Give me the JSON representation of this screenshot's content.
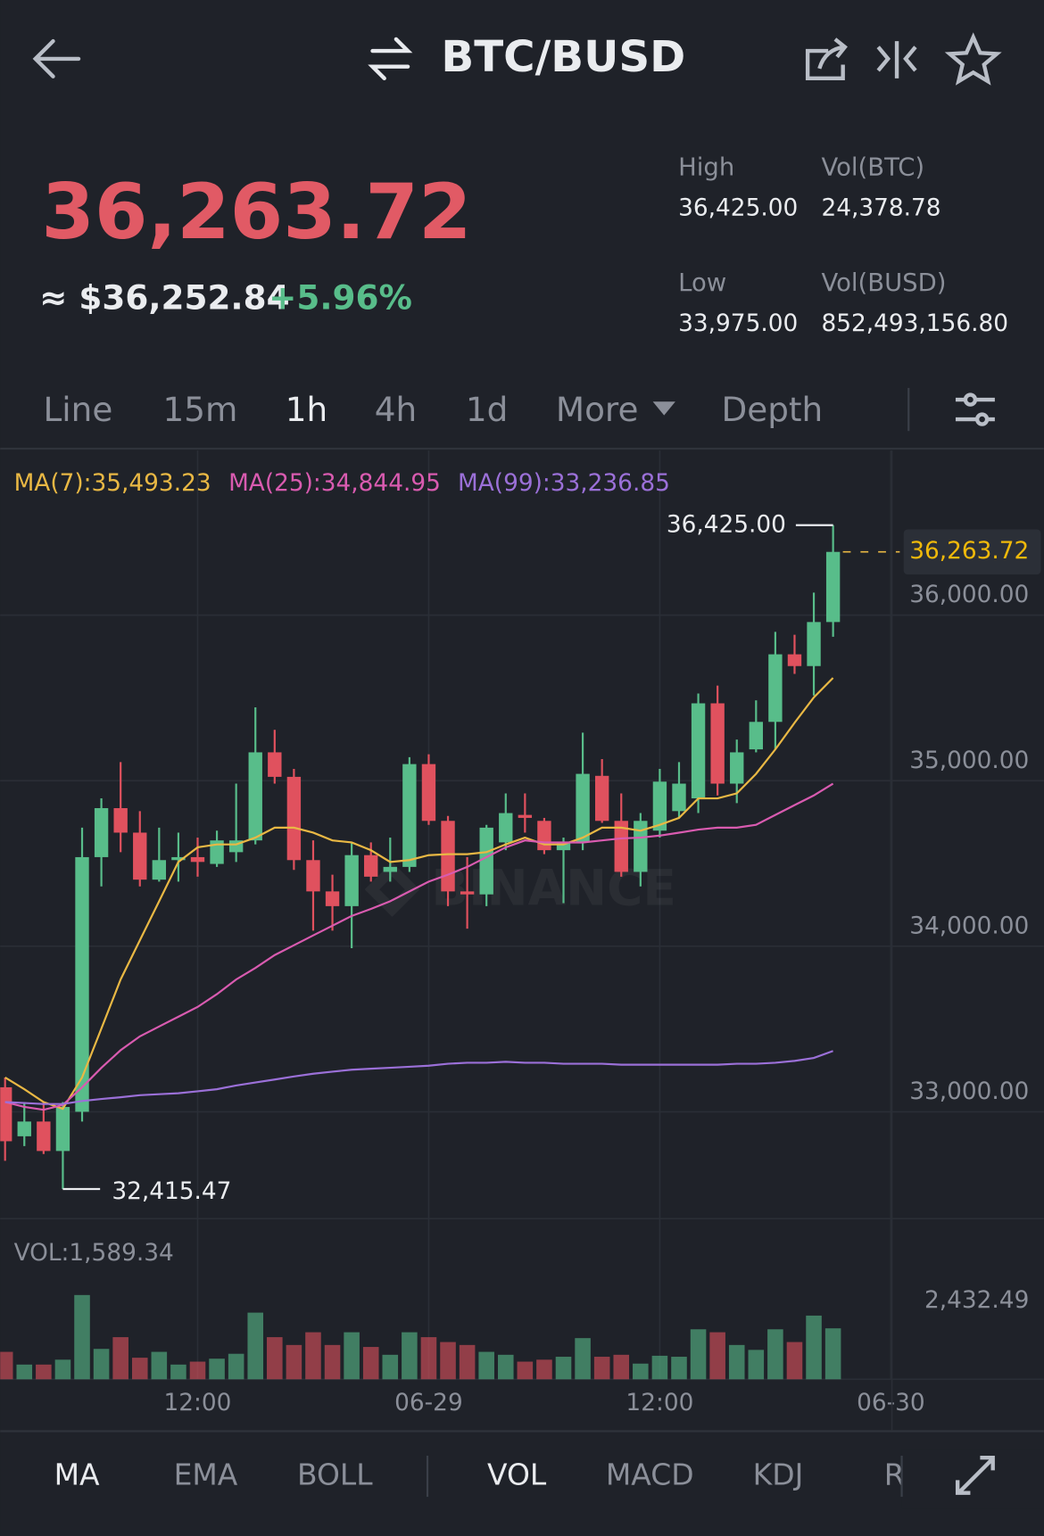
{
  "header": {
    "pair": "BTC/BUSD",
    "last_price": "36,263.72",
    "fiat_price": "≈ $36,252.84",
    "change": "+5.96%"
  },
  "stats": [
    {
      "label": "High",
      "value": "36,425.00"
    },
    {
      "label": "Vol(BTC)",
      "value": "24,378.78"
    },
    {
      "label": "Low",
      "value": "33,975.00"
    },
    {
      "label": "Vol(BUSD)",
      "value": "852,493,156.80"
    }
  ],
  "interval_tabs": [
    "Line",
    "15m",
    "1h",
    "4h",
    "1d",
    "More",
    "Depth"
  ],
  "indicator_tabs": [
    "MA",
    "EMA",
    "BOLL",
    "VOL",
    "MACD",
    "KDJ",
    "R"
  ],
  "chart_data": {
    "type": "candlestick",
    "watermark": "BINANCE",
    "ylim": [
      32150,
      36550
    ],
    "yticks": [
      {
        "value": 33000,
        "label": "33,000.00"
      },
      {
        "value": 34000,
        "label": "34,000.00"
      },
      {
        "value": 35000,
        "label": "35,000.00"
      },
      {
        "value": 36000,
        "label": "36,000.00"
      }
    ],
    "xticks": [
      {
        "value": 10,
        "label": "12:00"
      },
      {
        "value": 22,
        "label": "06-29"
      },
      {
        "value": 34,
        "label": "12:00"
      },
      {
        "value": 46,
        "label": "06-30"
      }
    ],
    "high_label": "36,425.00",
    "low_label": "32,415.47",
    "last_label": "36,263.72",
    "up_color": "#58bd8a",
    "down_color": "#e0515e",
    "open": [
      33030,
      32734,
      32823,
      32645,
      32882,
      34420,
      34716,
      34568,
      34284,
      34402,
      34420,
      34379,
      34450,
      34521,
      35053,
      34905,
      34402,
      34213,
      34124,
      34432,
      34331,
      34361,
      34982,
      34639,
      34213,
      34195,
      34509,
      34675,
      34639,
      34462,
      34509,
      34911,
      34639,
      34331,
      34580,
      34698,
      34775,
      35349,
      34864,
      35071,
      35237,
      35645,
      35574,
      35840
    ],
    "high": [
      33089,
      32941,
      32941,
      32941,
      34598,
      34775,
      34994,
      34698,
      34598,
      34568,
      34538,
      34580,
      34864,
      35325,
      35189,
      34953,
      34521,
      34314,
      34509,
      34509,
      34538,
      35024,
      35041,
      34669,
      34420,
      34615,
      34805,
      34805,
      34657,
      34538,
      35172,
      35012,
      34805,
      34686,
      34953,
      34994,
      35408,
      35456,
      35130,
      35367,
      35781,
      35763,
      36018,
      36425
    ],
    "low": [
      32586,
      32675,
      32627,
      32415.47,
      32823,
      34243,
      34450,
      34243,
      34272,
      34272,
      34302,
      34361,
      34391,
      34497,
      34864,
      34343,
      33976,
      33976,
      33870,
      34272,
      34272,
      34331,
      34615,
      34124,
      33988,
      34124,
      34462,
      34568,
      34438,
      34142,
      34462,
      34627,
      34302,
      34243,
      34538,
      34657,
      34686,
      34793,
      34746,
      35053,
      35071,
      35527,
      35396,
      35751
    ],
    "close": [
      32704,
      32823,
      32645,
      32911,
      34420,
      34716,
      34568,
      34284,
      34402,
      34420,
      34391,
      34521,
      34521,
      35053,
      34905,
      34402,
      34213,
      34124,
      34432,
      34302,
      34361,
      34982,
      34639,
      34213,
      34195,
      34598,
      34686,
      34657,
      34462,
      34509,
      34923,
      34639,
      34331,
      34639,
      34876,
      34864,
      35349,
      34864,
      35053,
      35237,
      35645,
      35574,
      35840,
      36263.72
    ],
    "series": [
      {
        "name": "MA(7):35,493.23",
        "color": "#e9b844",
        "values": [
          33089,
          33018,
          32941,
          32900,
          33089,
          33385,
          33681,
          33917,
          34154,
          34391,
          34479,
          34497,
          34497,
          34538,
          34598,
          34598,
          34568,
          34521,
          34509,
          34462,
          34391,
          34402,
          34432,
          34438,
          34438,
          34450,
          34497,
          34538,
          34497,
          34497,
          34538,
          34598,
          34598,
          34580,
          34615,
          34657,
          34775,
          34775,
          34805,
          34923,
          35071,
          35231,
          35385,
          35503
        ]
      },
      {
        "name": "MA(25):34,844.95",
        "color": "#d95bb0",
        "values": [
          32941,
          32911,
          32894,
          32923,
          33030,
          33148,
          33254,
          33337,
          33397,
          33456,
          33515,
          33592,
          33681,
          33751,
          33828,
          33888,
          33947,
          34006,
          34065,
          34107,
          34154,
          34213,
          34272,
          34314,
          34361,
          34420,
          34479,
          34521,
          34509,
          34509,
          34509,
          34521,
          34533,
          34538,
          34550,
          34568,
          34586,
          34598,
          34598,
          34615,
          34675,
          34734,
          34793,
          34864
        ]
      },
      {
        "name": "MA(99):33,236.85",
        "color": "#9b70d8",
        "values": [
          32941,
          32935,
          32929,
          32929,
          32947,
          32959,
          32970,
          32982,
          32988,
          32994,
          33006,
          33018,
          33041,
          33059,
          33077,
          33095,
          33112,
          33124,
          33136,
          33142,
          33148,
          33154,
          33160,
          33172,
          33178,
          33178,
          33184,
          33178,
          33178,
          33172,
          33172,
          33172,
          33166,
          33166,
          33166,
          33166,
          33166,
          33166,
          33172,
          33172,
          33178,
          33189,
          33207,
          33249
        ]
      }
    ],
    "volume": {
      "label": "VOL:1,589.34",
      "ylim": [
        0,
        2432.49
      ],
      "yticks": [
        {
          "value": 2432.49,
          "label": "2,432.49"
        }
      ],
      "values": [
        851,
        456,
        456,
        608,
        2615,
        943,
        1307,
        669,
        851,
        456,
        547,
        639,
        791,
        2068,
        1307,
        1064,
        1459,
        1064,
        1459,
        1003,
        760,
        1459,
        1307,
        1155,
        1064,
        851,
        760,
        547,
        608,
        699,
        1277,
        699,
        760,
        486,
        730,
        699,
        1551,
        1459,
        1064,
        912,
        1551,
        1155,
        1976,
        1581
      ]
    }
  }
}
